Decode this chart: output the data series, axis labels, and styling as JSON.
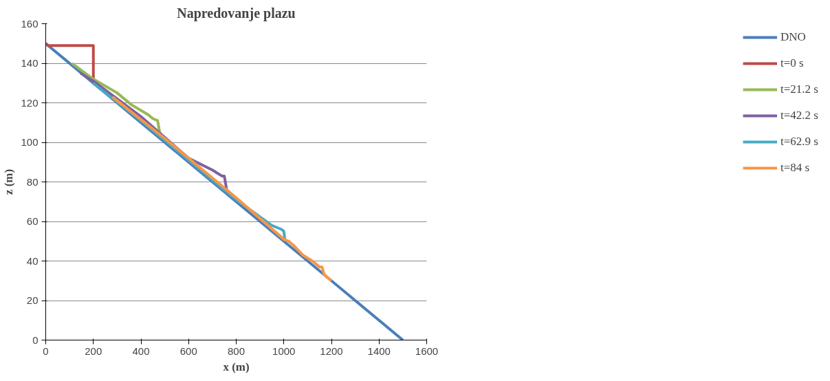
{
  "chart_data": {
    "type": "line",
    "title": "Napredovanje plazu",
    "xlabel": "x (m)",
    "ylabel": "z (m)",
    "xlim": [
      0,
      1600
    ],
    "ylim": [
      0,
      160
    ],
    "xticks": [
      0,
      200,
      400,
      600,
      800,
      1000,
      1200,
      1400,
      1600
    ],
    "yticks": [
      0,
      20,
      40,
      60,
      80,
      100,
      120,
      140,
      160
    ],
    "grid": "y",
    "legend": "right",
    "marker": "none",
    "line_style": "solid",
    "series": [
      {
        "name": "DNO",
        "color": "#4a7ebb",
        "x": [
          0,
          1500
        ],
        "values": [
          150,
          0
        ]
      },
      {
        "name": "t=0 s",
        "color": "#be4b48",
        "x": [
          0,
          10,
          200,
          200
        ],
        "values": [
          150,
          149,
          149,
          132
        ]
      },
      {
        "name": "t=21.2 s",
        "color": "#98b954",
        "x": [
          110,
          200,
          300,
          360,
          430,
          450,
          470,
          480,
          500
        ],
        "values": [
          140,
          132,
          125,
          119,
          114,
          112,
          111,
          104,
          102
        ]
      },
      {
        "name": "t=42.2 s",
        "color": "#7d60a0",
        "x": [
          146,
          200,
          400,
          600,
          700,
          740,
          750,
          760
        ],
        "values": [
          135,
          131,
          113,
          92,
          86,
          83,
          83,
          76
        ]
      },
      {
        "name": "t=62.9 s",
        "color": "#46aac5",
        "x": [
          198,
          400,
          600,
          800,
          950,
          990,
          1000,
          1005
        ],
        "values": [
          130,
          111,
          91,
          71,
          58,
          56,
          55,
          50
        ]
      },
      {
        "name": "t=84 s",
        "color": "#f79646",
        "x": [
          280,
          500,
          800,
          1000,
          1020,
          1040,
          1080,
          1120,
          1150,
          1160,
          1170,
          1200
        ],
        "values": [
          123,
          102,
          72,
          51,
          50,
          48,
          43,
          40,
          37,
          37,
          33,
          30
        ]
      }
    ]
  }
}
